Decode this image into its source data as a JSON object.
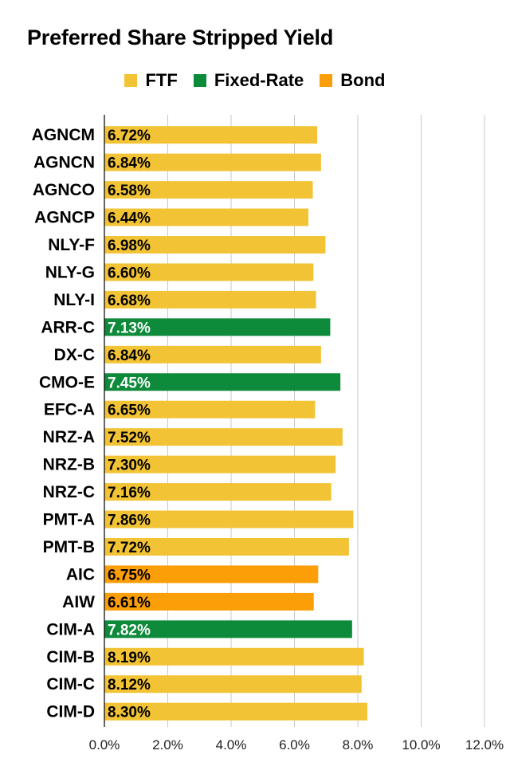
{
  "chart_data": {
    "type": "bar",
    "orientation": "horizontal",
    "title": "Preferred Share Stripped Yield",
    "legend": [
      {
        "name": "FTF",
        "color": "#f2c335"
      },
      {
        "name": "Fixed-Rate",
        "color": "#0d8a3a"
      },
      {
        "name": "Bond",
        "color": "#fc9e08"
      }
    ],
    "legend_position": "top",
    "xlim": [
      0,
      12
    ],
    "x_ticks": [
      "0.0%",
      "2.0%",
      "4.0%",
      "6.0%",
      "8.0%",
      "10.0%",
      "12.0%"
    ],
    "x_tick_values": [
      0,
      2,
      4,
      6,
      8,
      10,
      12
    ],
    "grid": true,
    "bars": [
      {
        "category": "AGNCM",
        "value": 6.72,
        "label": "6.72%",
        "series": "FTF"
      },
      {
        "category": "AGNCN",
        "value": 6.84,
        "label": "6.84%",
        "series": "FTF"
      },
      {
        "category": "AGNCO",
        "value": 6.58,
        "label": "6.58%",
        "series": "FTF"
      },
      {
        "category": "AGNCP",
        "value": 6.44,
        "label": "6.44%",
        "series": "FTF"
      },
      {
        "category": "NLY-F",
        "value": 6.98,
        "label": "6.98%",
        "series": "FTF"
      },
      {
        "category": "NLY-G",
        "value": 6.6,
        "label": "6.60%",
        "series": "FTF"
      },
      {
        "category": "NLY-I",
        "value": 6.68,
        "label": "6.68%",
        "series": "FTF"
      },
      {
        "category": "ARR-C",
        "value": 7.13,
        "label": "7.13%",
        "series": "Fixed-Rate"
      },
      {
        "category": "DX-C",
        "value": 6.84,
        "label": "6.84%",
        "series": "FTF"
      },
      {
        "category": "CMO-E",
        "value": 7.45,
        "label": "7.45%",
        "series": "Fixed-Rate"
      },
      {
        "category": "EFC-A",
        "value": 6.65,
        "label": "6.65%",
        "series": "FTF"
      },
      {
        "category": "NRZ-A",
        "value": 7.52,
        "label": "7.52%",
        "series": "FTF"
      },
      {
        "category": "NRZ-B",
        "value": 7.3,
        "label": "7.30%",
        "series": "FTF"
      },
      {
        "category": "NRZ-C",
        "value": 7.16,
        "label": "7.16%",
        "series": "FTF"
      },
      {
        "category": "PMT-A",
        "value": 7.86,
        "label": "7.86%",
        "series": "FTF"
      },
      {
        "category": "PMT-B",
        "value": 7.72,
        "label": "7.72%",
        "series": "FTF"
      },
      {
        "category": "AIC",
        "value": 6.75,
        "label": "6.75%",
        "series": "Bond"
      },
      {
        "category": "AIW",
        "value": 6.61,
        "label": "6.61%",
        "series": "Bond"
      },
      {
        "category": "CIM-A",
        "value": 7.82,
        "label": "7.82%",
        "series": "Fixed-Rate"
      },
      {
        "category": "CIM-B",
        "value": 8.19,
        "label": "8.19%",
        "series": "FTF"
      },
      {
        "category": "CIM-C",
        "value": 8.12,
        "label": "8.12%",
        "series": "FTF"
      },
      {
        "category": "CIM-D",
        "value": 8.3,
        "label": "8.30%",
        "series": "FTF"
      }
    ]
  }
}
